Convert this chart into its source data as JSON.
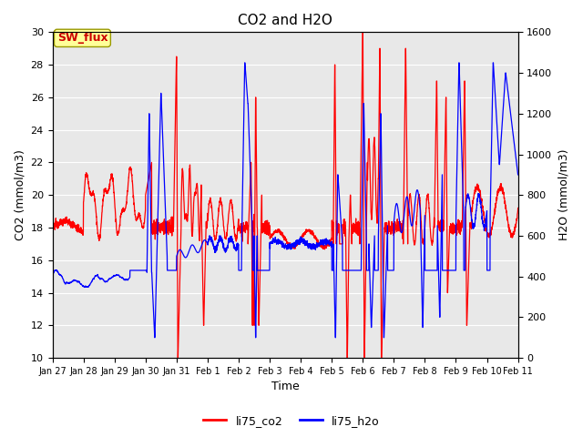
{
  "title": "CO2 and H2O",
  "xlabel": "Time",
  "ylabel_left": "CO2 (mmol/m3)",
  "ylabel_right": "H2O (mmol/m3)",
  "legend_label1": "li75_co2",
  "legend_label2": "li75_h2o",
  "annotation_text": "SW_flux",
  "co2_color": "#ff0000",
  "h2o_color": "#0000ff",
  "background_color": "#e8e8e8",
  "ylim_left": [
    10,
    30
  ],
  "ylim_right": [
    0,
    1600
  ],
  "yticks_left": [
    10,
    12,
    14,
    16,
    18,
    20,
    22,
    24,
    26,
    28,
    30
  ],
  "yticks_right": [
    0,
    200,
    400,
    600,
    800,
    1000,
    1200,
    1400,
    1600
  ],
  "x_tick_labels": [
    "Jan 27",
    "Jan 28",
    "Jan 29",
    "Jan 30",
    "Jan 31",
    "Feb 1",
    "Feb 2",
    "Feb 3",
    "Feb 4",
    "Feb 5",
    "Feb 6",
    "Feb 7",
    "Feb 8",
    "Feb 9",
    "Feb 10",
    "Feb 11"
  ],
  "num_points": 3000,
  "annotation_bbox_fc": "#ffff99",
  "annotation_bbox_ec": "#999900",
  "annotation_fontsize": 9,
  "annotation_color": "#cc0000",
  "linewidth": 0.9
}
